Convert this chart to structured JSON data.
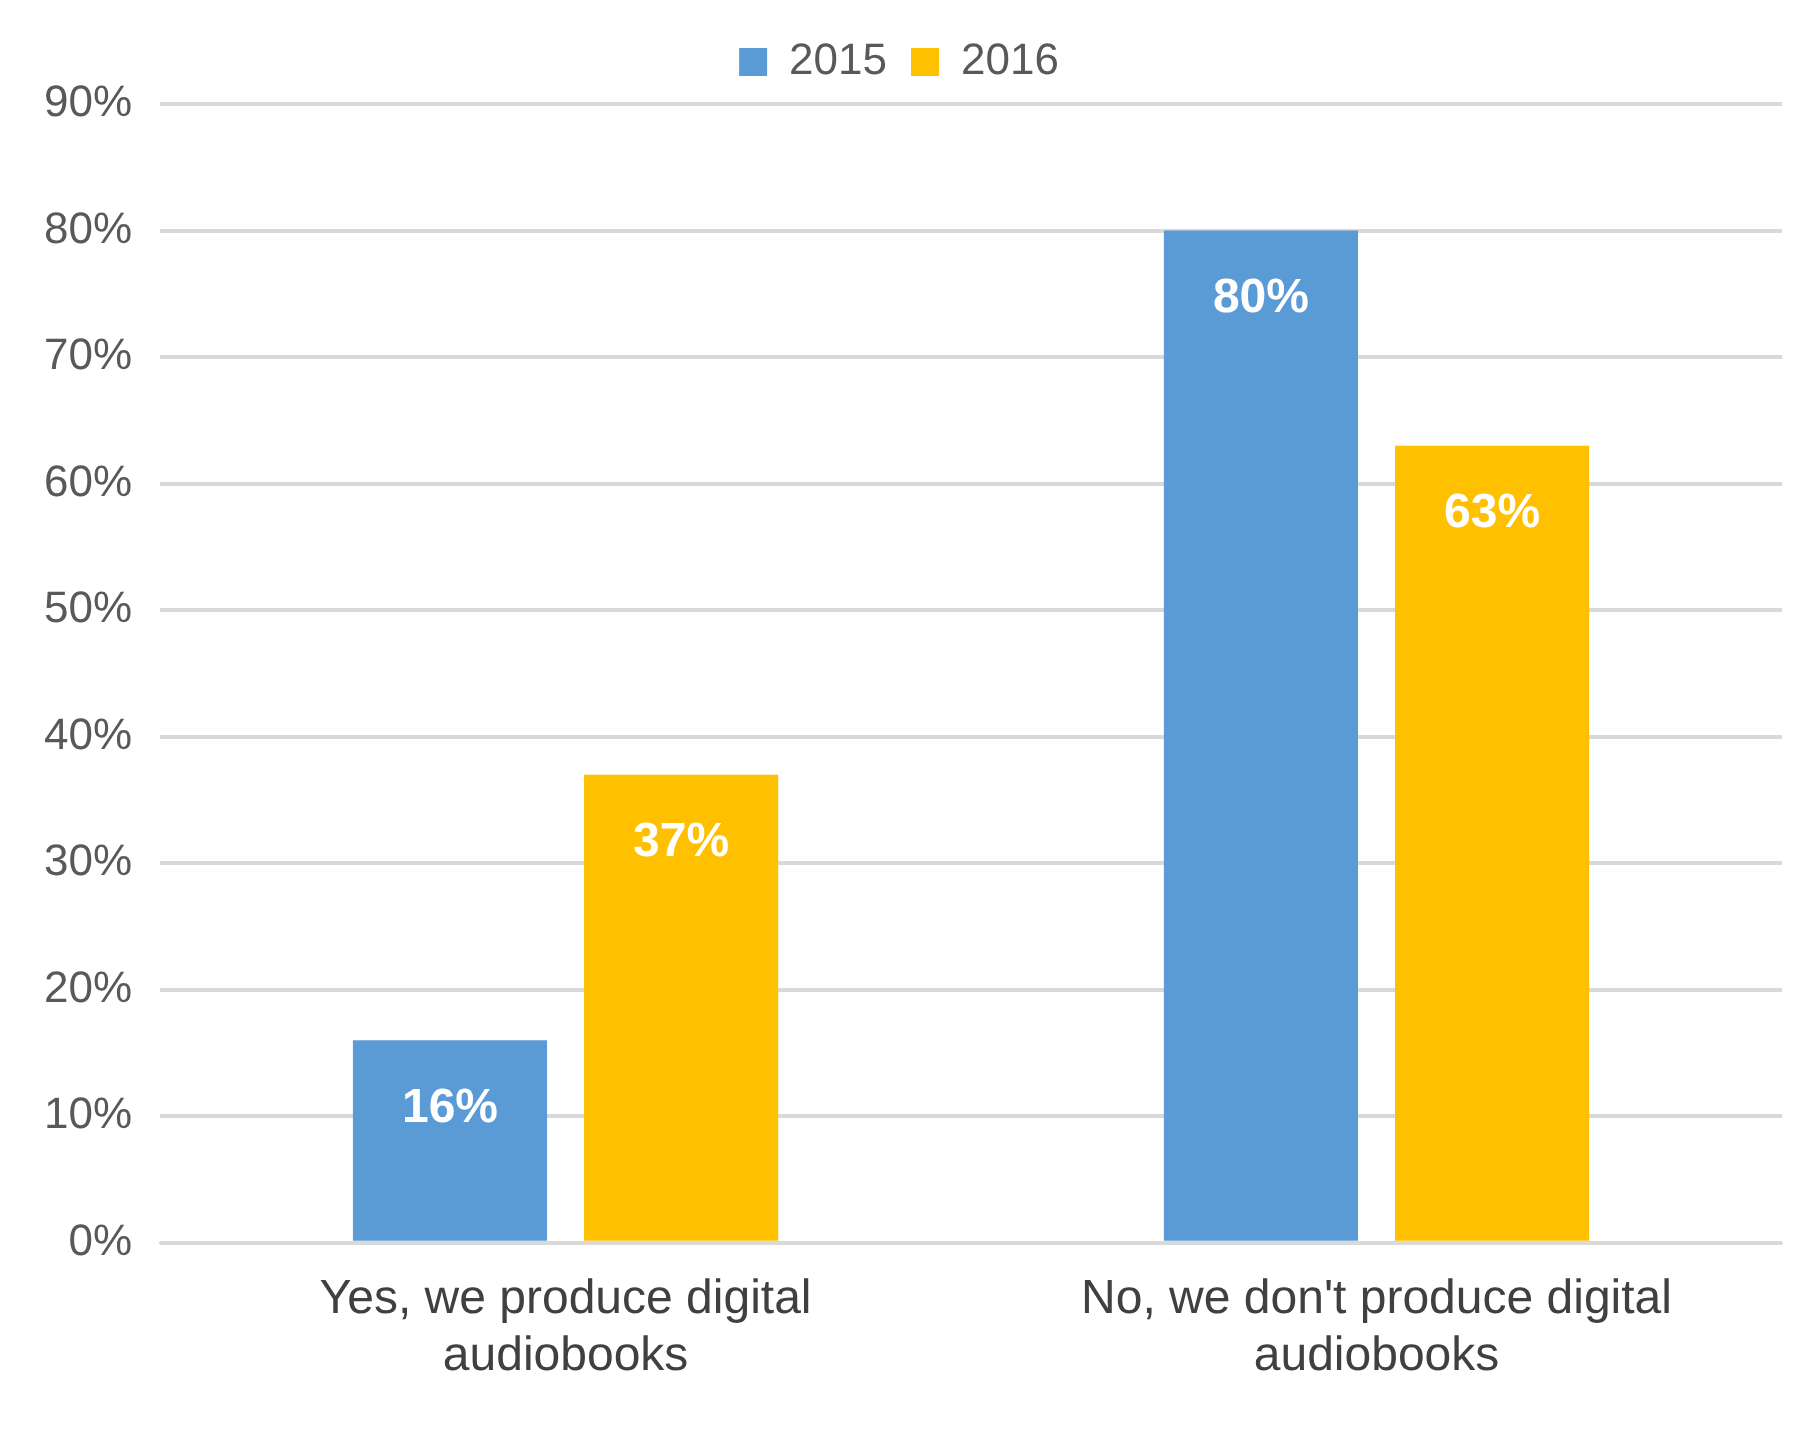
{
  "chart_data": {
    "type": "bar",
    "categories": [
      "Yes, we produce digital audiobooks",
      "No, we don't produce digital audiobooks"
    ],
    "series": [
      {
        "name": "2015",
        "color": "#5b9bd5",
        "values": [
          16,
          80
        ],
        "value_labels": [
          "16%",
          "80%"
        ]
      },
      {
        "name": "2016",
        "color": "#ffc000",
        "values": [
          37,
          63
        ],
        "value_labels": [
          "37%",
          "63%"
        ]
      }
    ],
    "ylim": [
      0,
      90
    ],
    "yticks": [
      {
        "value": 0,
        "label": "0%"
      },
      {
        "value": 10,
        "label": "10%"
      },
      {
        "value": 20,
        "label": "20%"
      },
      {
        "value": 30,
        "label": "30%"
      },
      {
        "value": 40,
        "label": "40%"
      },
      {
        "value": 50,
        "label": "50%"
      },
      {
        "value": 60,
        "label": "60%"
      },
      {
        "value": 70,
        "label": "70%"
      },
      {
        "value": 80,
        "label": "80%"
      },
      {
        "value": 90,
        "label": "90%"
      }
    ],
    "grid": "y",
    "legend": "top"
  }
}
